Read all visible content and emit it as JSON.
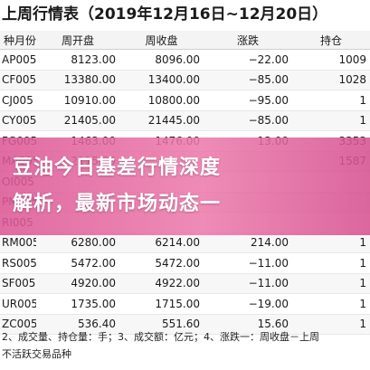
{
  "title": "上周行情表（2019年12月16日~12月20日）",
  "table": {
    "headers": [
      "种月份",
      "周开盘",
      "周收盘",
      "涨跌",
      "持仓"
    ],
    "rows": [
      {
        "code": "AP005",
        "open": "8123.00",
        "close": "8096.00",
        "change": "−22.00",
        "oi": "1009"
      },
      {
        "code": "CF005",
        "open": "13380.00",
        "close": "13400.00",
        "change": "−85.00",
        "oi": "1028"
      },
      {
        "code": "CJ005",
        "open": "10910.00",
        "close": "10800.00",
        "change": "−95.00",
        "oi": "1"
      },
      {
        "code": "CY005",
        "open": "21405.00",
        "close": "21445.00",
        "change": "−85.00",
        "oi": "1"
      },
      {
        "code": "FG005",
        "open": "1463.00",
        "close": "1476.00",
        "change": "13.00",
        "oi": "3353"
      },
      {
        "code": "MA005",
        "open": "2115.00",
        "close": "",
        "change": "",
        "oi": "1587"
      },
      {
        "code": "OI005",
        "open": "",
        "close": "",
        "change": "",
        "oi": ""
      },
      {
        "code": "PM005",
        "open": "",
        "close": "",
        "change": "",
        "oi": ""
      },
      {
        "code": "RI005",
        "open": "",
        "close": "",
        "change": "",
        "oi": ""
      },
      {
        "code": "RM005",
        "open": "6280.00",
        "close": "6214.00",
        "change": "214.00",
        "oi": "1"
      },
      {
        "code": "RS005",
        "open": "5472.00",
        "close": "5472.00",
        "change": "−11.00",
        "oi": "1"
      },
      {
        "code": "SF005",
        "open": "4920.00",
        "close": "4922.00",
        "change": "−11.00",
        "oi": "1"
      },
      {
        "code": "UR005",
        "open": "1735.00",
        "close": "1715.00",
        "change": "−19.00",
        "oi": "1"
      },
      {
        "code": "ZC005",
        "open": "536.40",
        "close": "551.60",
        "change": "15.60",
        "oi": "1"
      }
    ]
  },
  "footnote": {
    "line1": "2、成交量、持仓量：手；3、成交额：亿元；4、涨跌一：周收盘－上周",
    "line2": "不活跃交易品种"
  },
  "headline": {
    "line1": "豆油今日基差行情深度",
    "line2": "解析，最新市场动态一"
  }
}
